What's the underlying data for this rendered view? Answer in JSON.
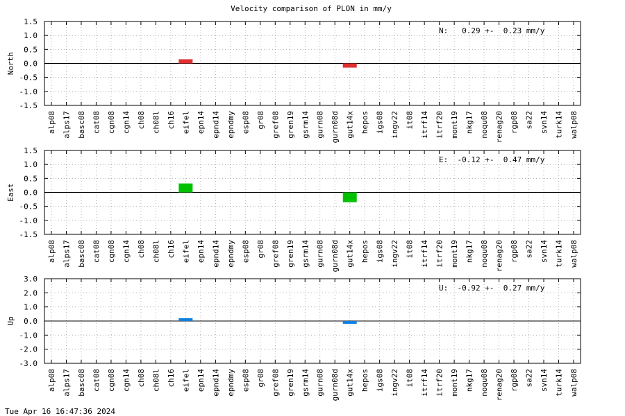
{
  "title": "Velocity comparison of PLON in mm/y",
  "footer": "Tue Apr 16 16:47:36 2024",
  "chart_data": [
    {
      "type": "bar",
      "ylabel": "North",
      "ylim": [
        -1.5,
        1.5
      ],
      "yticks": [
        "1.5",
        "1.0",
        "0.5",
        "0.0",
        "-0.5",
        "-1.0",
        "-1.5"
      ],
      "ytick_values": [
        1.5,
        1.0,
        0.5,
        0.0,
        -0.5,
        -1.0,
        -1.5
      ],
      "categories": [
        "alp08",
        "alps17",
        "basc08",
        "cat08",
        "cgn08",
        "cgn14",
        "ch08",
        "ch08l",
        "ch16",
        "eifel",
        "epn14",
        "epnd14",
        "epndmy",
        "esp08",
        "gr08",
        "gref08",
        "gren19",
        "gsrm14",
        "gurn08",
        "gurn08d",
        "gut14x",
        "hepos",
        "igs08",
        "ingv22",
        "it08",
        "itrf14",
        "itrf20",
        "mont19",
        "nkg17",
        "noqu08",
        "renag20",
        "rgp08",
        "sa22",
        "svn14",
        "turk14",
        "walp08"
      ],
      "values": [
        null,
        null,
        null,
        null,
        null,
        null,
        null,
        null,
        null,
        0.15,
        null,
        null,
        null,
        null,
        null,
        null,
        null,
        null,
        null,
        null,
        -0.15,
        null,
        null,
        null,
        null,
        null,
        null,
        null,
        null,
        null,
        null,
        null,
        null,
        null,
        null,
        null
      ],
      "color": "#e03030",
      "stat_text": "N:   0.29 +-  0.23 mm/y",
      "grid": true
    },
    {
      "type": "bar",
      "ylabel": "East",
      "ylim": [
        -1.5,
        1.5
      ],
      "yticks": [
        "1.5",
        "1.0",
        "0.5",
        "0.0",
        "-0.5",
        "-1.0",
        "-1.5"
      ],
      "ytick_values": [
        1.5,
        1.0,
        0.5,
        0.0,
        -0.5,
        -1.0,
        -1.5
      ],
      "categories": [
        "alp08",
        "alps17",
        "basc08",
        "cat08",
        "cgn08",
        "cgn14",
        "ch08",
        "ch08l",
        "ch16",
        "eifel",
        "epn14",
        "epnd14",
        "epndmy",
        "esp08",
        "gr08",
        "gref08",
        "gren19",
        "gsrm14",
        "gurn08",
        "gurn08d",
        "gut14x",
        "hepos",
        "igs08",
        "ingv22",
        "it08",
        "itrf14",
        "itrf20",
        "mont19",
        "nkg17",
        "noqu08",
        "renag20",
        "rgp08",
        "sa22",
        "svn14",
        "turk14",
        "walp08"
      ],
      "values": [
        null,
        null,
        null,
        null,
        null,
        null,
        null,
        null,
        null,
        0.32,
        null,
        null,
        null,
        null,
        null,
        null,
        null,
        null,
        null,
        null,
        -0.35,
        null,
        null,
        null,
        null,
        null,
        null,
        null,
        null,
        null,
        null,
        null,
        null,
        null,
        null,
        null
      ],
      "color": "#00c000",
      "stat_text": "E:  -0.12 +-  0.47 mm/y",
      "grid": true
    },
    {
      "type": "bar",
      "ylabel": "Up",
      "ylim": [
        -3.0,
        3.0
      ],
      "yticks": [
        "3.0",
        "2.0",
        "1.0",
        "0.0",
        "-1.0",
        "-2.0",
        "-3.0"
      ],
      "ytick_values": [
        3.0,
        2.0,
        1.0,
        0.0,
        -1.0,
        -2.0,
        -3.0
      ],
      "categories": [
        "alp08",
        "alps17",
        "basc08",
        "cat08",
        "cgn08",
        "cgn14",
        "ch08",
        "ch08l",
        "ch16",
        "eifel",
        "epn14",
        "epnd14",
        "epndmy",
        "esp08",
        "gr08",
        "gref08",
        "gren19",
        "gsrm14",
        "gurn08",
        "gurn08d",
        "gut14x",
        "hepos",
        "igs08",
        "ingv22",
        "it08",
        "itrf14",
        "itrf20",
        "mont19",
        "nkg17",
        "noqu08",
        "renag20",
        "rgp08",
        "sa22",
        "svn14",
        "turk14",
        "walp08"
      ],
      "values": [
        null,
        null,
        null,
        null,
        null,
        null,
        null,
        null,
        null,
        0.2,
        null,
        null,
        null,
        null,
        null,
        null,
        null,
        null,
        null,
        null,
        -0.2,
        null,
        null,
        null,
        null,
        null,
        null,
        null,
        null,
        null,
        null,
        null,
        null,
        null,
        null,
        null
      ],
      "color": "#1080e0",
      "stat_text": "U:  -0.92 +-  0.27 mm/y",
      "grid": true
    }
  ]
}
